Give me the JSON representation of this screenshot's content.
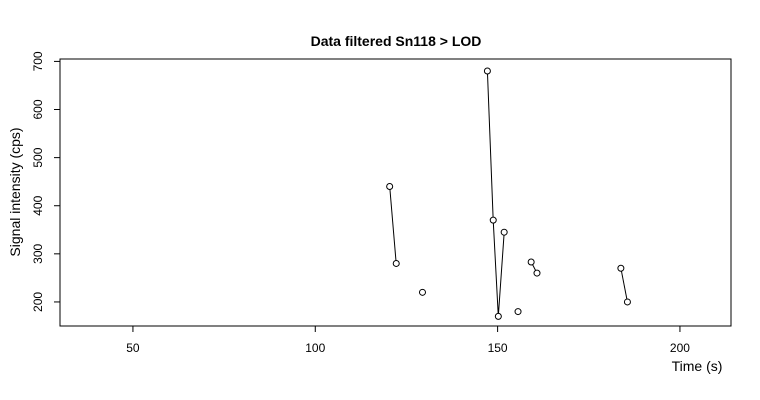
{
  "chart_data": {
    "type": "line",
    "title": "Data filtered Sn118 > LOD",
    "xlabel": "Time (s)",
    "ylabel": "Signal intensity (cps)",
    "xlim": [
      30,
      214
    ],
    "ylim": [
      150,
      705
    ],
    "xticks": [
      50,
      100,
      150,
      200
    ],
    "yticks": [
      200,
      300,
      400,
      500,
      600,
      700
    ],
    "grid": false,
    "legend": "none",
    "marker": "open-circle",
    "colors": {
      "line": "#000000",
      "marker_fill": "#ffffff",
      "background": "#ffffff"
    },
    "series": [
      {
        "segments": [
          {
            "x": [
              120.4,
              122.2
            ],
            "y": [
              440,
              280
            ]
          },
          {
            "x": [
              129.4
            ],
            "y": [
              220
            ]
          },
          {
            "x": [
              147.2,
              148.8,
              150.2,
              151.8
            ],
            "y": [
              680,
              370,
              170,
              345
            ]
          },
          {
            "x": [
              155.6
            ],
            "y": [
              180
            ]
          },
          {
            "x": [
              159.2,
              160.8
            ],
            "y": [
              283,
              260
            ]
          },
          {
            "x": [
              183.8,
              185.6
            ],
            "y": [
              270,
              200
            ]
          }
        ]
      }
    ]
  }
}
